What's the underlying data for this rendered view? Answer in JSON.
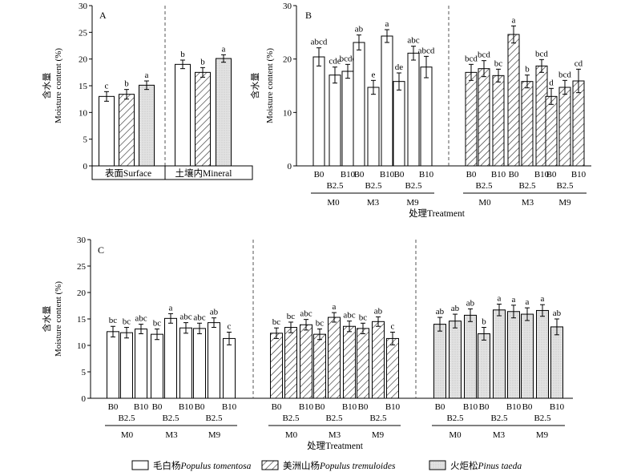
{
  "chart_data": [
    {
      "type": "bar",
      "panel": "A",
      "ylabel_cn": "含水量",
      "ylabel": "Moisture content (%)",
      "ylim": [
        0,
        30
      ],
      "yticks": [
        0,
        5,
        10,
        15,
        20,
        25,
        30
      ],
      "groups": [
        {
          "label": "表面Surface",
          "bars": [
            {
              "species": "tomentosa",
              "value": 13.0,
              "err": 0.9,
              "sig": "c"
            },
            {
              "species": "tremuloides",
              "value": 13.4,
              "err": 0.9,
              "sig": "b"
            },
            {
              "species": "taeda",
              "value": 15.1,
              "err": 0.8,
              "sig": "a"
            }
          ]
        },
        {
          "label": "土壤内Mineral",
          "bars": [
            {
              "species": "tomentosa",
              "value": 19.0,
              "err": 0.8,
              "sig": "b"
            },
            {
              "species": "tremuloides",
              "value": 17.5,
              "err": 0.9,
              "sig": "b"
            },
            {
              "species": "taeda",
              "value": 20.1,
              "err": 0.7,
              "sig": "a"
            }
          ]
        }
      ]
    },
    {
      "type": "bar",
      "panel": "B",
      "ylabel_cn": "含水量",
      "ylabel": "Moisture content (%)",
      "xlabel": "处理Treatment",
      "ylim": [
        0,
        30
      ],
      "yticks": [
        0,
        10,
        20,
        30
      ],
      "categories": [
        "B0",
        "B2.5",
        "B10",
        "B0",
        "B2.5",
        "B10",
        "B0",
        "B2.5",
        "B10"
      ],
      "mgroups": [
        "M0",
        "M3",
        "M9"
      ],
      "series": [
        {
          "name": "毛白杨Populus tomentosa",
          "species": "tomentosa",
          "values": [
            20.4,
            17.0,
            17.7,
            23.1,
            14.7,
            24.3,
            15.8,
            21.1,
            18.5
          ],
          "errors": [
            1.7,
            1.5,
            1.3,
            1.4,
            1.3,
            1.2,
            1.6,
            1.3,
            2.0
          ],
          "sig": [
            "abcd",
            "cde",
            "bcde",
            "ab",
            "e",
            "a",
            "de",
            "abc",
            "abcd"
          ]
        },
        {
          "name": "美洲山杨Populus tremuloides",
          "species": "tremuloides",
          "values": [
            17.5,
            18.2,
            16.9,
            24.6,
            15.8,
            18.7,
            13.0,
            14.7,
            15.9
          ],
          "errors": [
            1.5,
            1.5,
            1.2,
            1.6,
            1.2,
            1.2,
            1.5,
            1.3,
            2.2
          ],
          "sig": [
            "bcd",
            "bcd",
            "bc",
            "a",
            "b",
            "bcd",
            "d",
            "bcd",
            "cd"
          ]
        }
      ]
    },
    {
      "type": "bar",
      "panel": "C",
      "ylabel_cn": "含水量",
      "ylabel": "Moisture content (%)",
      "xlabel": "处理Treatment",
      "ylim": [
        0,
        30
      ],
      "yticks": [
        0,
        5,
        10,
        15,
        20,
        25,
        30
      ],
      "categories": [
        "B0",
        "B2.5",
        "B10",
        "B0",
        "B2.5",
        "B10",
        "B0",
        "B2.5",
        "B10"
      ],
      "mgroups": [
        "M0",
        "M3",
        "M9"
      ],
      "series": [
        {
          "name": "毛白杨Populus tomentosa",
          "species": "tomentosa",
          "values": [
            12.6,
            12.4,
            13.1,
            12.1,
            15.1,
            13.3,
            13.2,
            14.3,
            11.3
          ],
          "errors": [
            1.0,
            1.0,
            0.9,
            1.0,
            0.9,
            1.0,
            1.0,
            0.9,
            1.2
          ],
          "sig": [
            "bc",
            "bc",
            "abc",
            "bc",
            "a",
            "abc",
            "abc",
            "ab",
            "c"
          ]
        },
        {
          "name": "美洲山杨Populus tremuloides",
          "species": "tremuloides",
          "values": [
            12.3,
            13.4,
            13.9,
            12.1,
            15.3,
            13.6,
            13.2,
            14.5,
            11.3
          ],
          "errors": [
            1.0,
            1.0,
            1.0,
            1.0,
            0.9,
            1.0,
            1.0,
            0.9,
            1.2
          ],
          "sig": [
            "bc",
            "bc",
            "abc",
            "bc",
            "a",
            "abc",
            "bc",
            "ab",
            "c"
          ]
        },
        {
          "name": "火炬松Pinus taeda",
          "species": "taeda",
          "values": [
            14.0,
            14.6,
            15.7,
            12.2,
            16.7,
            16.4,
            15.9,
            16.6,
            13.5
          ],
          "errors": [
            1.3,
            1.3,
            1.2,
            1.2,
            1.1,
            1.2,
            1.2,
            1.1,
            1.5
          ],
          "sig": [
            "ab",
            "ab",
            "ab",
            "b",
            "a",
            "a",
            "a",
            "a",
            "ab"
          ]
        }
      ]
    }
  ],
  "legend": {
    "items": [
      {
        "cn": "毛白杨",
        "latin": "Populus tomentosa",
        "species": "tomentosa"
      },
      {
        "cn": "美洲山杨",
        "latin": "Populus tremuloides",
        "species": "tremuloides"
      },
      {
        "cn": "火炬松",
        "latin": "Pinus taeda",
        "species": "taeda"
      }
    ]
  },
  "colors": {
    "tomentosa": "#ffffff",
    "tremuloides": "hatch",
    "taeda": "#e0e0e0",
    "axis": "#000000",
    "separator": "#555555"
  }
}
